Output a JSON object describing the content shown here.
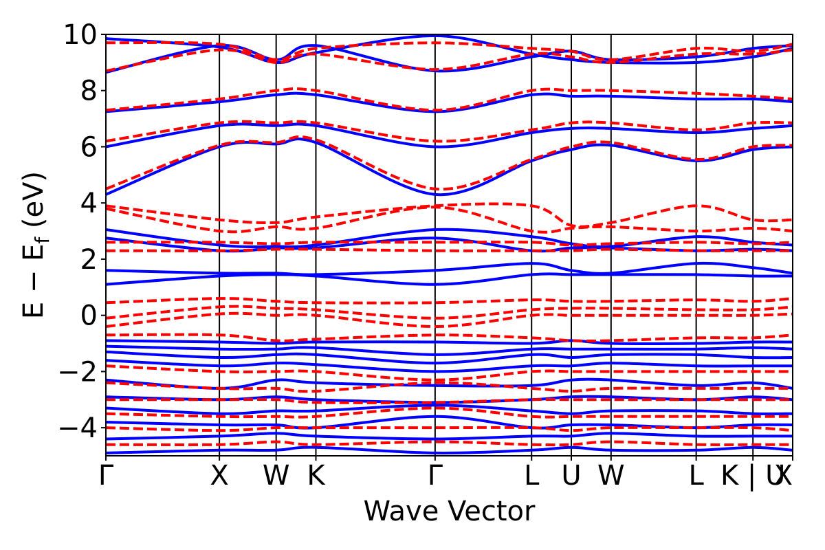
{
  "chart_data": {
    "type": "line",
    "title": "",
    "xlabel": "Wave Vector",
    "ylabel": "E − E",
    "ylabel_sub": "f",
    "ylabel_unit": " (eV)",
    "ylim": [
      -5,
      10
    ],
    "yticks": [
      -4,
      -2,
      0,
      2,
      4,
      6,
      8,
      10
    ],
    "ytick_labels": [
      "−4",
      "−2",
      "0",
      "2",
      "4",
      "6",
      "8",
      "10"
    ],
    "kpath": {
      "labels": [
        "Γ",
        "X",
        "W",
        "K",
        "Γ",
        "L",
        "U",
        "W",
        "L",
        "K | U",
        "X"
      ],
      "positions": [
        0,
        1.0,
        1.5,
        1.85,
        2.9,
        3.75,
        4.1,
        4.45,
        5.2,
        5.7,
        6.05
      ]
    },
    "grid": false,
    "legend": "none",
    "colors": {
      "spin_up": "#0000ff",
      "spin_down": "#ff0000",
      "kpoint_line": "#000000"
    },
    "series": [
      {
        "style": "solid",
        "color": "#0000ff",
        "bands": [
          [
            9.85,
            9.55,
            9.0,
            9.35,
            9.95,
            9.3,
            9.1,
            9.0,
            9.0,
            9.2,
            9.5
          ],
          [
            8.65,
            9.6,
            9.1,
            9.6,
            8.7,
            9.2,
            9.4,
            9.1,
            9.2,
            9.5,
            9.6
          ],
          [
            7.25,
            7.6,
            7.85,
            7.85,
            7.25,
            7.85,
            7.8,
            7.8,
            7.7,
            7.7,
            7.6
          ],
          [
            6.0,
            6.75,
            6.75,
            6.75,
            6.0,
            6.5,
            6.65,
            6.65,
            6.5,
            6.65,
            6.75
          ],
          [
            4.3,
            6.0,
            6.1,
            6.15,
            4.3,
            5.5,
            5.9,
            6.05,
            5.5,
            5.9,
            6.0
          ],
          [
            3.05,
            2.5,
            2.45,
            2.5,
            3.05,
            2.8,
            2.55,
            2.45,
            2.8,
            2.6,
            2.5
          ],
          [
            2.75,
            2.3,
            2.4,
            2.4,
            2.75,
            2.3,
            2.4,
            2.4,
            2.3,
            2.35,
            2.3
          ],
          [
            1.6,
            1.5,
            1.5,
            1.45,
            1.6,
            1.85,
            1.6,
            1.5,
            1.85,
            1.7,
            1.5
          ],
          [
            1.1,
            1.4,
            1.45,
            1.4,
            1.1,
            1.45,
            1.45,
            1.45,
            1.45,
            1.4,
            1.4
          ],
          [
            -0.9,
            -0.95,
            -1.0,
            -0.95,
            -0.95,
            -1.0,
            -0.9,
            -1.0,
            -1.0,
            -0.95,
            -0.95
          ],
          [
            -1.1,
            -1.2,
            -1.2,
            -1.15,
            -1.4,
            -1.2,
            -1.2,
            -1.2,
            -1.2,
            -1.15,
            -1.2
          ],
          [
            -1.3,
            -1.5,
            -1.4,
            -1.4,
            -1.7,
            -1.4,
            -1.5,
            -1.4,
            -1.4,
            -1.5,
            -1.5
          ],
          [
            -1.6,
            -1.8,
            -1.7,
            -1.75,
            -2.0,
            -1.8,
            -1.8,
            -1.7,
            -1.8,
            -1.8,
            -1.8
          ],
          [
            -2.3,
            -2.6,
            -2.3,
            -2.4,
            -2.5,
            -2.5,
            -2.3,
            -2.3,
            -2.5,
            -2.4,
            -2.6
          ],
          [
            -2.9,
            -3.0,
            -2.9,
            -3.0,
            -3.1,
            -3.0,
            -2.9,
            -2.9,
            -3.0,
            -2.9,
            -3.0
          ],
          [
            -3.3,
            -3.5,
            -3.4,
            -3.4,
            -3.2,
            -3.4,
            -3.5,
            -3.4,
            -3.4,
            -3.5,
            -3.5
          ],
          [
            -3.8,
            -3.9,
            -3.9,
            -4.0,
            -3.6,
            -4.0,
            -3.9,
            -3.9,
            -4.0,
            -3.9,
            -3.9
          ],
          [
            -4.4,
            -4.3,
            -4.2,
            -4.3,
            -4.4,
            -4.3,
            -4.3,
            -4.2,
            -4.3,
            -4.3,
            -4.3
          ],
          [
            -4.9,
            -4.8,
            -4.8,
            -4.7,
            -4.9,
            -4.8,
            -4.7,
            -4.8,
            -4.8,
            -4.7,
            -4.8
          ]
        ]
      },
      {
        "style": "dashed",
        "color": "#ff0000",
        "bands": [
          [
            9.7,
            9.65,
            9.1,
            9.5,
            9.7,
            9.5,
            9.4,
            9.1,
            9.5,
            9.4,
            9.65
          ],
          [
            8.7,
            9.45,
            9.0,
            9.3,
            8.75,
            9.3,
            9.2,
            9.0,
            9.3,
            9.3,
            9.45
          ],
          [
            7.3,
            7.7,
            8.0,
            8.0,
            7.3,
            8.0,
            8.0,
            8.0,
            7.9,
            7.8,
            7.7
          ],
          [
            6.2,
            6.85,
            6.85,
            6.85,
            6.2,
            6.6,
            6.85,
            6.85,
            6.6,
            6.85,
            6.85
          ],
          [
            4.5,
            6.05,
            6.15,
            6.25,
            4.5,
            5.55,
            6.0,
            6.15,
            5.55,
            6.0,
            6.05
          ],
          [
            3.9,
            3.4,
            3.3,
            3.5,
            3.9,
            3.9,
            3.2,
            3.3,
            3.9,
            3.4,
            3.4
          ],
          [
            3.8,
            3.0,
            3.15,
            3.1,
            3.85,
            3.0,
            3.1,
            3.15,
            3.0,
            3.1,
            3.0
          ],
          [
            2.6,
            2.6,
            2.55,
            2.6,
            2.6,
            2.6,
            2.5,
            2.55,
            2.6,
            2.55,
            2.6
          ],
          [
            2.3,
            2.3,
            2.35,
            2.35,
            2.3,
            2.3,
            2.3,
            2.35,
            2.3,
            2.3,
            2.3
          ],
          [
            0.45,
            0.6,
            0.5,
            0.45,
            0.45,
            0.55,
            0.5,
            0.5,
            0.55,
            0.5,
            0.6
          ],
          [
            -0.1,
            0.3,
            0.25,
            0.2,
            -0.1,
            0.2,
            0.25,
            0.25,
            0.2,
            0.2,
            0.3
          ],
          [
            -0.4,
            0.05,
            0.0,
            0.0,
            -0.4,
            0.0,
            0.0,
            0.0,
            0.0,
            0.0,
            0.05
          ],
          [
            -0.7,
            -0.7,
            -0.9,
            -0.85,
            -0.7,
            -0.8,
            -0.9,
            -0.9,
            -0.8,
            -0.8,
            -0.7
          ],
          [
            -1.8,
            -2.0,
            -2.0,
            -2.0,
            -2.3,
            -2.0,
            -2.0,
            -2.0,
            -2.0,
            -2.0,
            -2.0
          ],
          [
            -2.4,
            -2.6,
            -2.6,
            -2.7,
            -2.4,
            -2.6,
            -2.7,
            -2.6,
            -2.6,
            -2.6,
            -2.6
          ],
          [
            -3.0,
            -3.0,
            -3.0,
            -3.1,
            -3.1,
            -3.0,
            -3.0,
            -3.0,
            -3.0,
            -3.0,
            -3.0
          ],
          [
            -3.5,
            -3.6,
            -3.6,
            -3.6,
            -3.3,
            -3.6,
            -3.6,
            -3.6,
            -3.6,
            -3.6,
            -3.6
          ],
          [
            -4.0,
            -4.1,
            -4.0,
            -4.0,
            -4.0,
            -4.0,
            -4.1,
            -4.0,
            -4.0,
            -4.0,
            -4.1
          ],
          [
            -4.6,
            -4.6,
            -4.5,
            -4.6,
            -4.5,
            -4.6,
            -4.6,
            -4.5,
            -4.6,
            -4.6,
            -4.6
          ]
        ]
      }
    ]
  }
}
